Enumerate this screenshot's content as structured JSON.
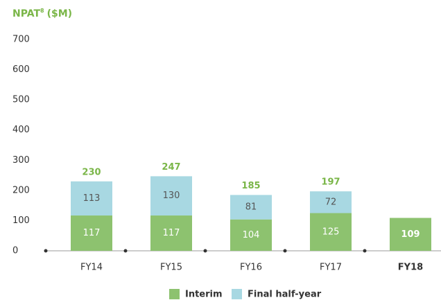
{
  "chart_data": {
    "type": "stacked-bar",
    "title": {
      "text": "NPAT",
      "superscript": "8",
      "unit": "($M)"
    },
    "categories": [
      "FY14",
      "FY15",
      "FY16",
      "FY17",
      "FY18"
    ],
    "bold_categories": [
      "FY18"
    ],
    "series": [
      {
        "name": "Interim",
        "color": "#8dc26f",
        "label_color": "#ffffff",
        "values": [
          117,
          117,
          104,
          125,
          109
        ]
      },
      {
        "name": "Final half-year",
        "color": "#a8d8e2",
        "label_color": "#555555",
        "values": [
          113,
          130,
          81,
          72,
          null
        ]
      }
    ],
    "totals": [
      230,
      247,
      185,
      197,
      null
    ],
    "total_color": "#7ab648",
    "ylim": [
      0,
      700
    ],
    "yticks": [
      0,
      100,
      200,
      300,
      400,
      500,
      600,
      700
    ],
    "legend": "bottom"
  }
}
